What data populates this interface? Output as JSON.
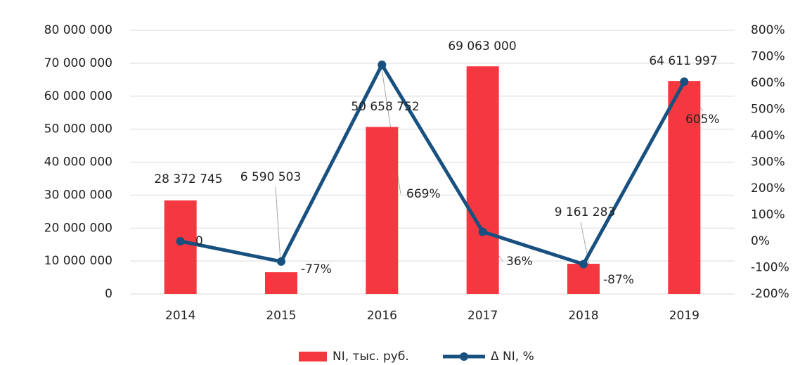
{
  "chart_data": {
    "type": "bar_line",
    "categories": [
      "2014",
      "2015",
      "2016",
      "2017",
      "2018",
      "2019"
    ],
    "series": [
      {
        "name": "NI, тыс. руб.",
        "color": "#f5383f",
        "type": "bar",
        "values": [
          28372745,
          6590503,
          50658752,
          69063000,
          9161283,
          64611997
        ],
        "value_labels": [
          "28 372 745",
          "6 590 503",
          "50 658 752",
          "69 063 000",
          "9 161 283",
          "64 611 997"
        ]
      },
      {
        "name": "Δ NI, %",
        "color": "#18507f",
        "type": "line",
        "axis": "y2",
        "values": [
          0,
          -77,
          669,
          36,
          -87,
          605
        ],
        "value_labels": [
          "0",
          "-77%",
          "669%",
          "36%",
          "-87%",
          "605%"
        ]
      }
    ],
    "ylim": [
      0,
      80000000
    ],
    "yticks": [
      0,
      {
        "value": 10000000,
        "label": "10 000 000"
      },
      {
        "value": 20000000,
        "label": "20 000 000"
      },
      {
        "value": 30000000,
        "label": "30 000 000"
      },
      {
        "value": 40000000,
        "label": "40 000 000"
      },
      {
        "value": 50000000,
        "label": "50 000 000"
      },
      {
        "value": 60000000,
        "label": "60 000 000"
      },
      {
        "value": 70000000,
        "label": "70 000 000"
      },
      {
        "value": 80000000,
        "label": "80 000 000"
      }
    ],
    "y2lim": [
      -200,
      800
    ],
    "y2ticks": [
      {
        "value": -200,
        "label": "-200%"
      },
      {
        "value": -100,
        "label": "-100%"
      },
      {
        "value": 0,
        "label": "0%"
      },
      {
        "value": 100,
        "label": "100%"
      },
      {
        "value": 200,
        "label": "200%"
      },
      {
        "value": 300,
        "label": "300%"
      },
      {
        "value": 400,
        "label": "400%"
      },
      {
        "value": 500,
        "label": "500%"
      },
      {
        "value": 600,
        "label": "600%"
      },
      {
        "value": 700,
        "label": "700%"
      },
      {
        "value": 800,
        "label": "800%"
      }
    ],
    "grid": true,
    "legend": "bottom"
  }
}
